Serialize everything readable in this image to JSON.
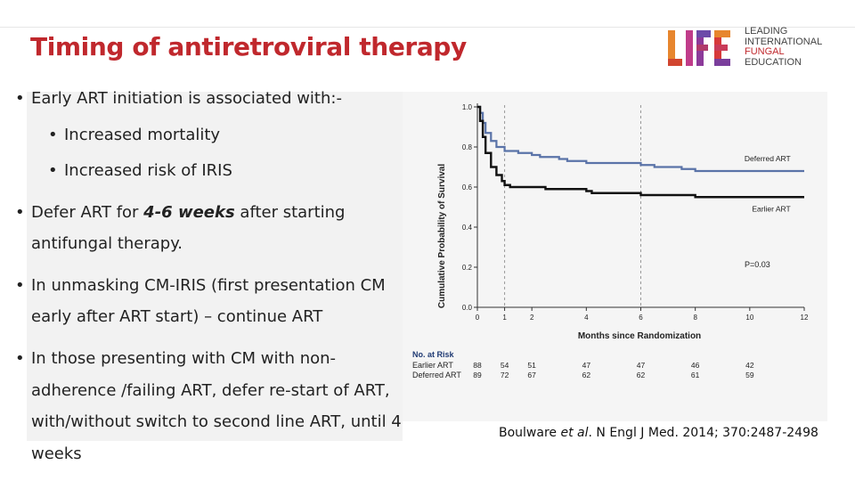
{
  "slide": {
    "title": "Timing of antiretroviral therapy",
    "logo": {
      "mark": "LIFE",
      "lines": [
        "LEADING",
        "INTERNATIONAL",
        "FUNGAL",
        "EDUCATION"
      ]
    },
    "bullets": {
      "b1": "Early ART initiation is associated with:-",
      "b1a": "Increased mortality",
      "b1b": "Increased risk of IRIS",
      "b2_pre": "Defer ART for ",
      "b2_em": "4-6 weeks",
      "b2_post": " after starting",
      "b2_line2": "antifungal therapy.",
      "b3_line1": "In unmasking CM-IRIS (first presentation CM",
      "b3_line2": "early after ART start) – continue ART",
      "b4_line1": "In those presenting with CM with non-",
      "b4_line2": "adherence /failing ART, defer re-start of ART,",
      "b4_line3": "with/without switch to second line ART, until 4",
      "b4_line4": "weeks"
    },
    "citation": {
      "authors": "Boulware ",
      "etal": "et al",
      "rest": ". N Engl J Med. 2014; 370:2487-2498"
    },
    "colors": {
      "title": "#c0282d",
      "deferred": "#5a73a8",
      "earlier": "#111111"
    }
  },
  "chart_data": {
    "type": "line",
    "title": "",
    "xlabel": "Months since Randomization",
    "ylabel": "Cumulative Probability of Survival",
    "xlim": [
      0,
      12
    ],
    "ylim": [
      0,
      1.0
    ],
    "xticks": [
      0,
      1,
      2,
      4,
      6,
      8,
      10,
      12
    ],
    "yticks": [
      "0.0",
      "0.2",
      "0.4",
      "0.6",
      "0.8",
      "1.0"
    ],
    "reference_lines_x": [
      1,
      6
    ],
    "series": [
      {
        "name": "Deferred ART",
        "x": [
          0,
          0.1,
          0.2,
          0.3,
          0.5,
          0.7,
          1.0,
          1.5,
          2.0,
          2.3,
          3.0,
          3.3,
          4.0,
          6.0,
          6.5,
          7.5,
          8.0,
          12.0
        ],
        "y": [
          1.0,
          0.97,
          0.92,
          0.87,
          0.83,
          0.8,
          0.78,
          0.77,
          0.76,
          0.75,
          0.74,
          0.73,
          0.72,
          0.71,
          0.7,
          0.69,
          0.68,
          0.68
        ]
      },
      {
        "name": "Earlier ART",
        "x": [
          0,
          0.1,
          0.2,
          0.3,
          0.5,
          0.7,
          0.9,
          1.0,
          1.2,
          2.0,
          2.5,
          4.0,
          4.2,
          6.0,
          8.0,
          12.0
        ],
        "y": [
          1.0,
          0.93,
          0.85,
          0.77,
          0.7,
          0.66,
          0.63,
          0.61,
          0.6,
          0.6,
          0.59,
          0.58,
          0.57,
          0.56,
          0.55,
          0.55
        ]
      }
    ],
    "annotation": "P=0.03",
    "risk_table": {
      "header": "No. at Risk",
      "rows": [
        {
          "label": "Earlier ART",
          "values": [
            "88",
            "54",
            "51",
            "47",
            "47",
            "46",
            "42"
          ]
        },
        {
          "label": "Deferred ART",
          "values": [
            "89",
            "72",
            "67",
            "62",
            "62",
            "61",
            "59"
          ]
        }
      ],
      "x": [
        0,
        1,
        2,
        4,
        6,
        8,
        10
      ]
    }
  }
}
